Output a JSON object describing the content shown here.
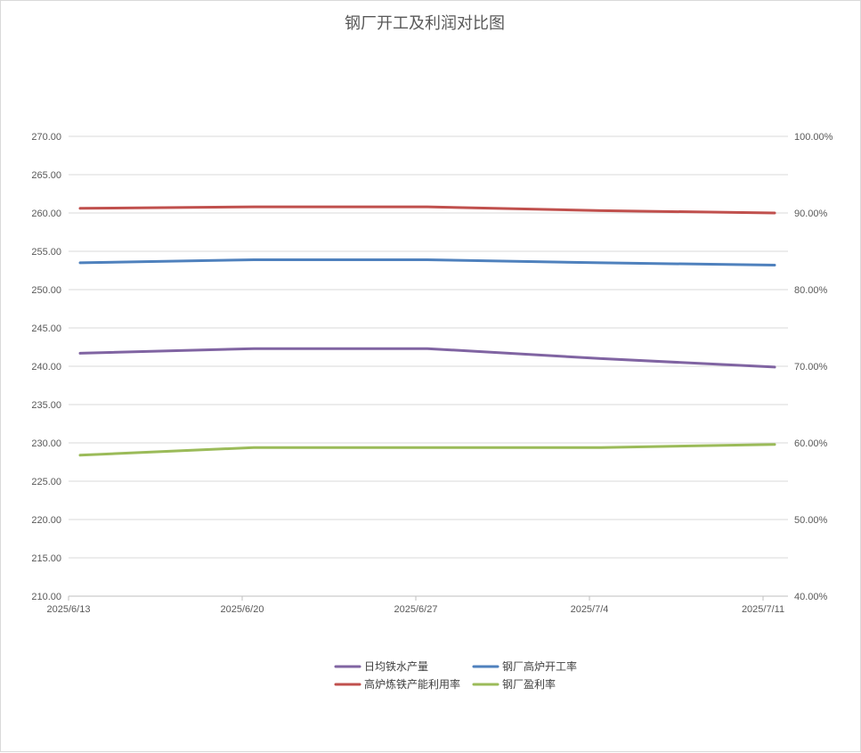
{
  "chart_data": {
    "type": "line",
    "title": "钢厂开工及利润对比图",
    "categories": [
      "2025/6/13",
      "2025/6/20",
      "2025/6/27",
      "2025/7/4",
      "2025/7/11"
    ],
    "y_left": {
      "ylim": [
        210,
        270
      ],
      "ticks": [
        "210.00",
        "215.00",
        "220.00",
        "225.00",
        "230.00",
        "235.00",
        "240.00",
        "245.00",
        "250.00",
        "255.00",
        "260.00",
        "265.00",
        "270.00"
      ]
    },
    "y_right": {
      "ylim": [
        40,
        100
      ],
      "ticks": [
        "40.00%",
        "50.00%",
        "60.00%",
        "70.00%",
        "80.00%",
        "90.00%",
        "100.00%"
      ]
    },
    "grid": true,
    "legend_position": "bottom",
    "series": [
      {
        "name": "日均铁水产量",
        "axis": "left",
        "color": "#8064a2",
        "values": [
          241.7,
          242.3,
          242.3,
          241.0,
          239.9
        ]
      },
      {
        "name": "钢厂高炉开工率",
        "axis": "right",
        "color": "#4f81bd",
        "values": [
          83.5,
          83.9,
          83.9,
          83.5,
          83.2
        ]
      },
      {
        "name": "高炉炼铁产能利用率",
        "axis": "right",
        "color": "#c0504d",
        "values": [
          90.6,
          90.8,
          90.8,
          90.3,
          90.0
        ]
      },
      {
        "name": "钢厂盈利率",
        "axis": "right",
        "color": "#9bbb59",
        "values": [
          58.4,
          59.4,
          59.4,
          59.4,
          59.8
        ]
      }
    ]
  }
}
